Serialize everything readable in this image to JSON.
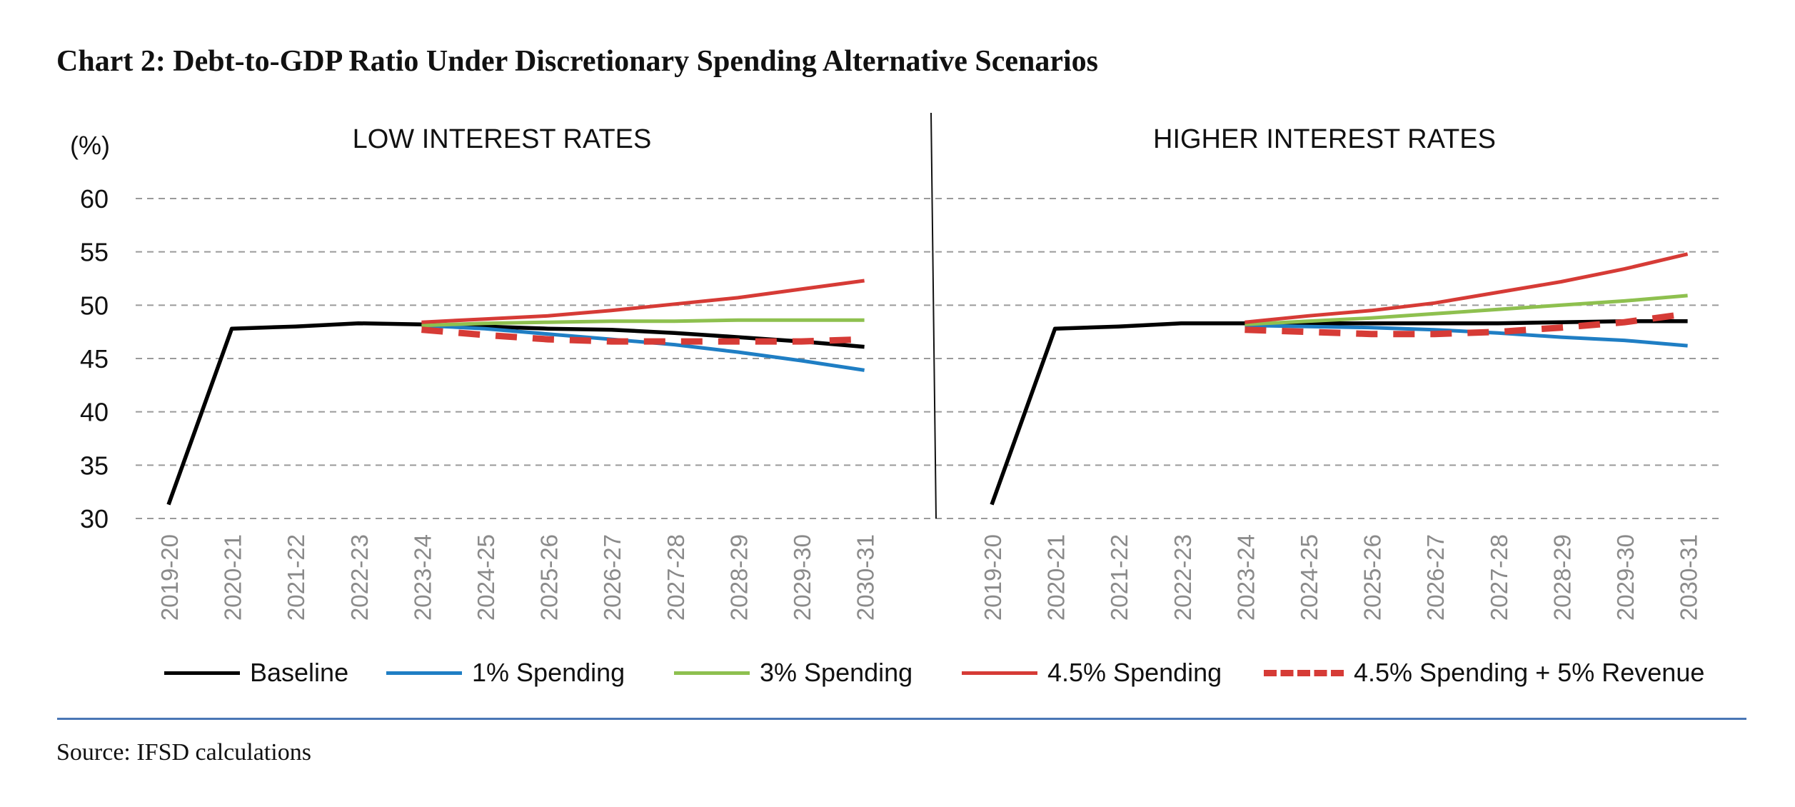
{
  "title": "Chart 2: Debt-to-GDP Ratio Under Discretionary Spending Alternative Scenarios",
  "source": "Source: IFSD calculations",
  "colors": {
    "baseline": "#000000",
    "spend1": "#1f7ec4",
    "spend3": "#8ec04f",
    "spend45": "#d63b36",
    "spend45rev": "#d63b36",
    "grid": "#9a9a9a",
    "rule": "#4a76b5",
    "tick_label": "#8a8a8a"
  },
  "legend": [
    {
      "key": "baseline",
      "label": "Baseline",
      "dashed": false
    },
    {
      "key": "spend1",
      "label": "1% Spending",
      "dashed": false
    },
    {
      "key": "spend3",
      "label": "3% Spending",
      "dashed": false
    },
    {
      "key": "spend45",
      "label": "4.5% Spending",
      "dashed": false
    },
    {
      "key": "spend45rev",
      "label": "4.5% Spending + 5% Revenue",
      "dashed": true
    }
  ],
  "chart_data": [
    {
      "type": "line",
      "panel_title": "LOW INTEREST RATES",
      "ylabel": "(%)",
      "ylim": [
        30,
        60
      ],
      "yticks": [
        30,
        35,
        40,
        45,
        50,
        55,
        60
      ],
      "grid": true,
      "categories": [
        "2019-20",
        "2020-21",
        "2021-22",
        "2022-23",
        "2023-24",
        "2024-25",
        "2025-26",
        "2026-27",
        "2027-28",
        "2028-29",
        "2029-30",
        "2030-31"
      ],
      "series": [
        {
          "key": "baseline",
          "name": "Baseline",
          "values": [
            31.3,
            47.8,
            48.0,
            48.3,
            48.2,
            48.0,
            47.8,
            47.7,
            47.4,
            47.0,
            46.6,
            46.1
          ]
        },
        {
          "key": "spend1",
          "name": "1% Spending",
          "values": [
            null,
            null,
            null,
            null,
            48.1,
            47.8,
            47.3,
            46.8,
            46.3,
            45.6,
            44.8,
            43.9
          ]
        },
        {
          "key": "spend3",
          "name": "3% Spending",
          "values": [
            null,
            null,
            null,
            null,
            48.1,
            48.3,
            48.4,
            48.5,
            48.5,
            48.6,
            48.6,
            48.6
          ]
        },
        {
          "key": "spend45",
          "name": "4.5% Spending",
          "values": [
            null,
            null,
            null,
            null,
            48.4,
            48.7,
            49.0,
            49.5,
            50.1,
            50.7,
            51.5,
            52.3
          ]
        },
        {
          "key": "spend45rev",
          "name": "4.5% Spending + 5% Revenue",
          "values": [
            null,
            null,
            null,
            null,
            47.7,
            47.2,
            46.8,
            46.6,
            46.6,
            46.6,
            46.6,
            46.8
          ]
        }
      ]
    },
    {
      "type": "line",
      "panel_title": "HIGHER INTEREST RATES",
      "ylim": [
        30,
        60
      ],
      "grid": true,
      "categories": [
        "2019-20",
        "2020-21",
        "2021-22",
        "2022-23",
        "2023-24",
        "2024-25",
        "2025-26",
        "2026-27",
        "2027-28",
        "2028-29",
        "2029-30",
        "2030-31"
      ],
      "series": [
        {
          "key": "baseline",
          "name": "Baseline",
          "values": [
            31.3,
            47.8,
            48.0,
            48.3,
            48.3,
            48.3,
            48.3,
            48.3,
            48.3,
            48.4,
            48.5,
            48.5
          ]
        },
        {
          "key": "spend1",
          "name": "1% Spending",
          "values": [
            null,
            null,
            null,
            null,
            48.1,
            48.0,
            47.9,
            47.7,
            47.4,
            47.0,
            46.7,
            46.2
          ]
        },
        {
          "key": "spend3",
          "name": "3% Spending",
          "values": [
            null,
            null,
            null,
            null,
            48.2,
            48.5,
            48.8,
            49.2,
            49.6,
            50.0,
            50.4,
            50.9
          ]
        },
        {
          "key": "spend45",
          "name": "4.5% Spending",
          "values": [
            null,
            null,
            null,
            null,
            48.4,
            49.0,
            49.5,
            50.2,
            51.2,
            52.2,
            53.4,
            54.8
          ]
        },
        {
          "key": "spend45rev",
          "name": "4.5% Spending + 5% Revenue",
          "values": [
            null,
            null,
            null,
            null,
            47.7,
            47.5,
            47.3,
            47.3,
            47.5,
            47.9,
            48.4,
            49.2
          ]
        }
      ]
    }
  ]
}
